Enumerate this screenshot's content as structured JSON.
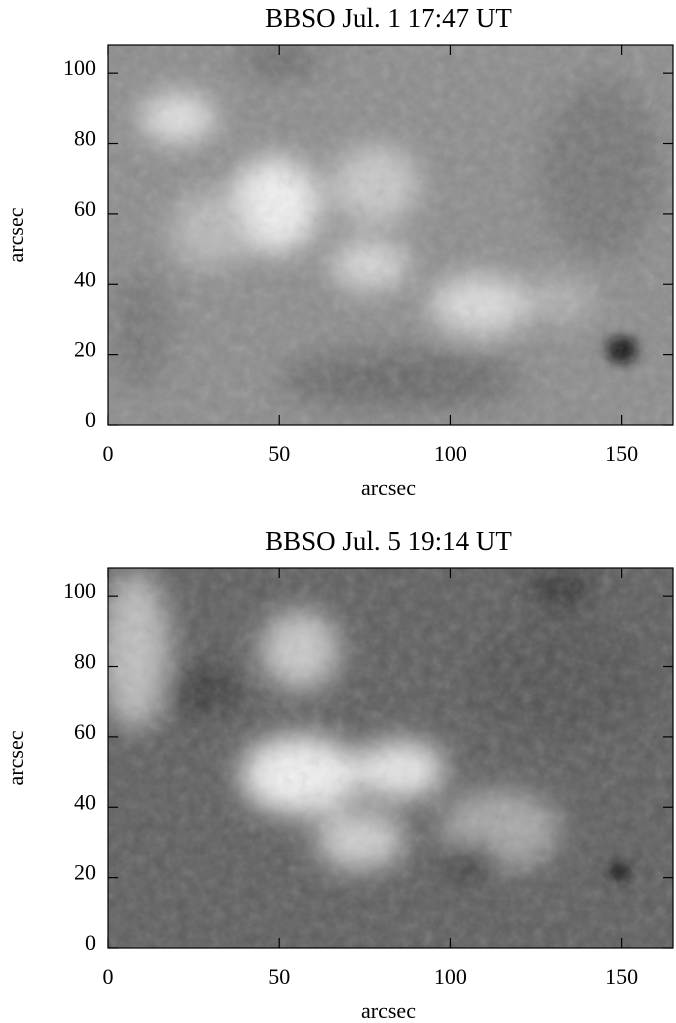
{
  "chart_data": [
    {
      "type": "image",
      "title": "BBSO  Jul. 1 17:47 UT",
      "xlabel": "arcsec",
      "ylabel": "arcsec",
      "xlim": [
        0,
        165
      ],
      "ylim": [
        0,
        108
      ],
      "xticks": [
        0,
        50,
        100,
        150
      ],
      "yticks": [
        0,
        20,
        40,
        60,
        80,
        100
      ]
    },
    {
      "type": "image",
      "title": "BBSO  Jul. 5 19:14 UT",
      "xlabel": "arcsec",
      "ylabel": "arcsec",
      "xlim": [
        0,
        165
      ],
      "ylim": [
        0,
        108
      ],
      "xticks": [
        0,
        50,
        100,
        150
      ],
      "yticks": [
        0,
        20,
        40,
        60,
        80,
        100
      ]
    }
  ]
}
